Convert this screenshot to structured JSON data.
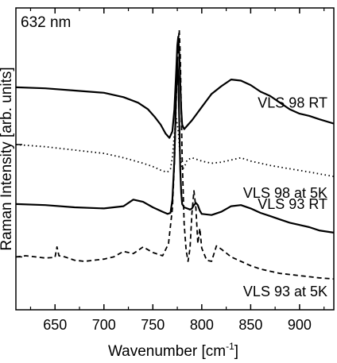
{
  "chart_data": {
    "type": "line",
    "annotation": "632 nm",
    "xlabel": "Wavenumber [cm",
    "xlabel_sup": "-1",
    "xlabel_close": "]",
    "ylabel": "Raman Intensity [arb. units]",
    "xlim": [
      610,
      935
    ],
    "x_ticks": [
      650,
      700,
      750,
      800,
      850,
      900
    ],
    "x_tick_labels": [
      "650",
      "700",
      "750",
      "800",
      "850",
      "900"
    ],
    "y_ticks_visible": false,
    "grid": false,
    "series": [
      {
        "name": "VLS 98 RT",
        "style": "solid",
        "offset": 8.6,
        "x": [
          610,
          640,
          670,
          700,
          720,
          735,
          745,
          752,
          758,
          763,
          767,
          770,
          772,
          774,
          775,
          776,
          777,
          778,
          779,
          780,
          782,
          785,
          790,
          795,
          800,
          805,
          810,
          820,
          830,
          840,
          850,
          860,
          870,
          880,
          890,
          900,
          910,
          920,
          935
        ],
        "y": [
          0,
          -0.05,
          -0.15,
          -0.25,
          -0.45,
          -0.7,
          -1.0,
          -1.35,
          -1.7,
          -2.1,
          -2.3,
          -2.0,
          -1.0,
          0.8,
          1.9,
          2.3,
          1.6,
          0.2,
          -1.0,
          -1.7,
          -1.9,
          -1.75,
          -1.5,
          -1.2,
          -0.9,
          -0.6,
          -0.3,
          0.05,
          0.35,
          0.3,
          0.1,
          -0.2,
          -0.4,
          -0.7,
          -1.0,
          -1.2,
          -1.3,
          -1.45,
          -1.65
        ]
      },
      {
        "name": "VLS 98 at 5K",
        "style": "dotted",
        "offset": 6.0,
        "x": [
          610,
          640,
          670,
          700,
          720,
          740,
          750,
          760,
          765,
          768,
          770,
          772,
          774,
          776,
          778,
          780,
          782,
          785,
          790,
          800,
          810,
          820,
          830,
          840,
          850,
          870,
          890,
          910,
          935
        ],
        "y": [
          0,
          -0.1,
          -0.25,
          -0.4,
          -0.6,
          -0.85,
          -1.0,
          -1.2,
          -1.25,
          -1.1,
          -0.6,
          0.5,
          1.2,
          0.6,
          -0.6,
          -1.1,
          -1.05,
          -0.7,
          -0.6,
          -0.75,
          -0.85,
          -0.8,
          -0.7,
          -0.6,
          -0.75,
          -0.95,
          -1.1,
          -1.25,
          -1.45
        ]
      },
      {
        "name": "VLS 93 RT",
        "style": "solid",
        "offset": 3.3,
        "x": [
          610,
          640,
          670,
          700,
          720,
          730,
          740,
          750,
          760,
          765,
          768,
          770,
          772,
          774,
          775,
          776,
          777,
          778,
          779,
          780,
          782,
          785,
          788,
          790,
          792,
          794,
          796,
          798,
          800,
          810,
          820,
          830,
          840,
          850,
          860,
          870,
          880,
          890,
          900,
          910,
          920,
          935
        ],
        "y": [
          0,
          -0.05,
          -0.15,
          -0.2,
          -0.1,
          0.2,
          0.1,
          -0.15,
          -0.35,
          -0.45,
          -0.4,
          0.2,
          2.0,
          5.2,
          6.6,
          5.8,
          3.8,
          1.6,
          0.5,
          0.0,
          -0.15,
          -0.2,
          -0.25,
          -0.2,
          -0.05,
          0.05,
          -0.05,
          -0.3,
          -0.45,
          -0.5,
          -0.35,
          -0.1,
          -0.05,
          -0.2,
          -0.4,
          -0.55,
          -0.7,
          -0.85,
          -0.95,
          -1.05,
          -1.2,
          -1.3
        ]
      },
      {
        "name": "VLS 93 at 5K",
        "style": "dashed",
        "offset": 0.9,
        "x": [
          610,
          620,
          630,
          640,
          650,
          652,
          654,
          660,
          670,
          680,
          690,
          700,
          710,
          720,
          730,
          740,
          750,
          760,
          766,
          770,
          772,
          774,
          776,
          777,
          778,
          780,
          782,
          784,
          786,
          788,
          790,
          792,
          794,
          796,
          798,
          800,
          805,
          810,
          815,
          820,
          830,
          840,
          850,
          860,
          870,
          880,
          890,
          900,
          910,
          920,
          935
        ],
        "y": [
          0,
          0.05,
          0.0,
          -0.05,
          -0.02,
          0.45,
          0.05,
          0.0,
          -0.15,
          -0.2,
          -0.15,
          -0.1,
          0.0,
          0.25,
          0.15,
          0.45,
          0.2,
          0.05,
          0.6,
          2.2,
          4.2,
          7.2,
          9.8,
          10.3,
          9.2,
          4.5,
          1.5,
          0.3,
          -0.2,
          0.4,
          2.0,
          3.0,
          2.2,
          0.6,
          1.3,
          0.4,
          -0.15,
          -0.2,
          0.5,
          0.35,
          0.0,
          -0.2,
          -0.4,
          -0.55,
          -0.65,
          -0.75,
          -0.8,
          -0.85,
          -0.9,
          -0.95,
          -1.0
        ]
      }
    ]
  }
}
